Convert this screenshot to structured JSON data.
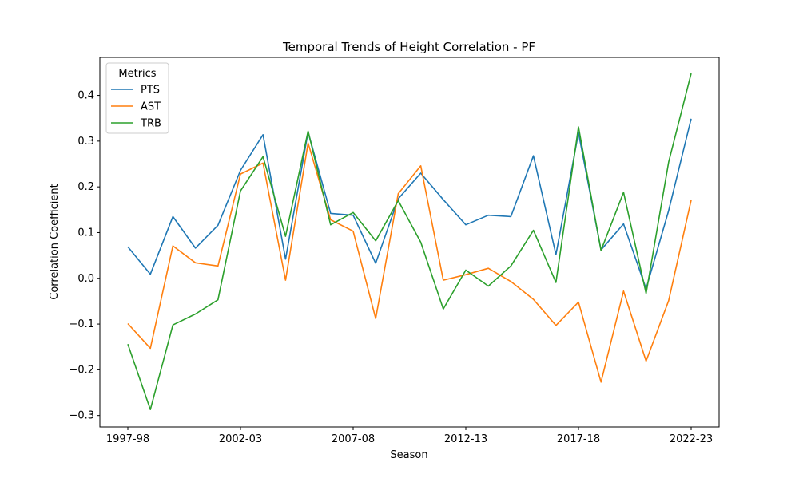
{
  "chart_data": {
    "type": "line",
    "title": "Temporal Trends of Height Correlation - PF",
    "xlabel": "Season",
    "ylabel": "Correlation Coefficient",
    "ylim": [
      -0.325,
      0.483
    ],
    "yticks": [
      -0.3,
      -0.2,
      -0.1,
      0.0,
      0.1,
      0.2,
      0.3,
      0.4
    ],
    "ytick_labels": [
      "−0.3",
      "−0.2",
      "−0.1",
      "0.0",
      "0.1",
      "0.2",
      "0.3",
      "0.4"
    ],
    "x": [
      "1997-98",
      "1998-99",
      "1999-00",
      "2000-01",
      "2001-02",
      "2002-03",
      "2003-04",
      "2004-05",
      "2005-06",
      "2006-07",
      "2007-08",
      "2008-09",
      "2009-10",
      "2010-11",
      "2011-12",
      "2012-13",
      "2013-14",
      "2014-15",
      "2015-16",
      "2016-17",
      "2017-18",
      "2018-19",
      "2019-20",
      "2020-21",
      "2021-22",
      "2022-23"
    ],
    "xtick_labels": [
      "1997-98",
      "2002-03",
      "2007-08",
      "2012-13",
      "2017-18",
      "2022-23"
    ],
    "grid": false,
    "legend": {
      "title": "Metrics",
      "placement": "top-left"
    },
    "series": [
      {
        "name": "PTS",
        "color": "#1f77b4",
        "values": [
          0.069,
          0.009,
          0.135,
          0.066,
          0.116,
          0.236,
          0.314,
          0.042,
          0.32,
          0.142,
          0.138,
          0.033,
          0.174,
          0.23,
          0.172,
          0.117,
          0.138,
          0.135,
          0.268,
          0.052,
          0.318,
          0.062,
          0.119,
          -0.023,
          0.148,
          0.349
        ]
      },
      {
        "name": "AST",
        "color": "#ff7f0e",
        "values": [
          -0.099,
          -0.153,
          0.071,
          0.034,
          0.027,
          0.228,
          0.252,
          -0.004,
          0.296,
          0.128,
          0.103,
          -0.088,
          0.185,
          0.246,
          -0.004,
          0.008,
          0.022,
          -0.007,
          -0.046,
          -0.103,
          -0.052,
          -0.227,
          -0.028,
          -0.181,
          -0.049,
          0.171
        ]
      },
      {
        "name": "TRB",
        "color": "#2ca02c",
        "values": [
          -0.144,
          -0.287,
          -0.102,
          -0.078,
          -0.047,
          0.191,
          0.266,
          0.092,
          0.322,
          0.117,
          0.144,
          0.082,
          0.17,
          0.079,
          -0.067,
          0.018,
          -0.017,
          0.027,
          0.105,
          -0.009,
          0.331,
          0.061,
          0.188,
          -0.033,
          0.254,
          0.448
        ]
      }
    ]
  }
}
